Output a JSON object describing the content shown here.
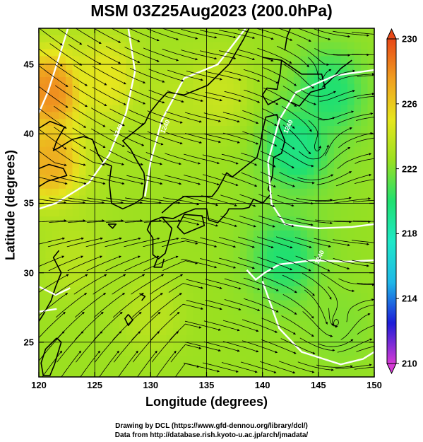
{
  "chart_data": {
    "type": "heatmap",
    "title": "MSM 03Z25Aug2023 (200.0hPa)",
    "xlabel": "Longitude (degrees)",
    "ylabel": "Latitude  (degrees)",
    "xlim": [
      120,
      150
    ],
    "ylim": [
      22.5,
      47.6
    ],
    "xticks": [
      "120",
      "125",
      "130",
      "135",
      "140",
      "145",
      "150"
    ],
    "yticks": [
      "25",
      "30",
      "35",
      "40",
      "45"
    ],
    "colorbar": {
      "range": [
        210,
        230
      ],
      "ticks": [
        "210",
        "214",
        "218",
        "222",
        "226",
        "230"
      ],
      "colors": [
        "#d53ad5",
        "#1d1dd8",
        "#1fb7e8",
        "#1fe8c8",
        "#20e070",
        "#9ae020",
        "#e6e61e",
        "#f0a020",
        "#e84818"
      ]
    },
    "contour_labels": [
      "1240",
      "1240",
      "1240",
      "1240"
    ],
    "field": {
      "description_points": [
        {
          "lon": 121,
          "lat": 43,
          "value": 228
        },
        {
          "lon": 121,
          "lat": 38,
          "value": 227
        },
        {
          "lon": 126,
          "lat": 44,
          "value": 225
        },
        {
          "lon": 123,
          "lat": 31,
          "value": 223.5
        },
        {
          "lon": 132,
          "lat": 42,
          "value": 223.5
        },
        {
          "lon": 136,
          "lat": 43,
          "value": 224
        },
        {
          "lon": 143,
          "lat": 39,
          "value": 219.5
        },
        {
          "lon": 146,
          "lat": 43,
          "value": 220
        },
        {
          "lon": 142,
          "lat": 31,
          "value": 220
        },
        {
          "lon": 147,
          "lat": 26,
          "value": 222
        },
        {
          "lon": 130,
          "lat": 27,
          "value": 223.5
        }
      ],
      "background_value": 222.5
    },
    "vortices": [
      {
        "lon": 144.8,
        "lat": 38.8
      },
      {
        "lon": 146.5,
        "lat": 26.2
      },
      {
        "lon": 145.0,
        "lat": 43.8
      }
    ]
  },
  "credits": {
    "line1": "Drawing by DCL (https://www.gfd-dennou.org/library/dcl/)",
    "line2": "Data from http://database.rish.kyoto-u.ac.jp/arch/jmadata/"
  }
}
